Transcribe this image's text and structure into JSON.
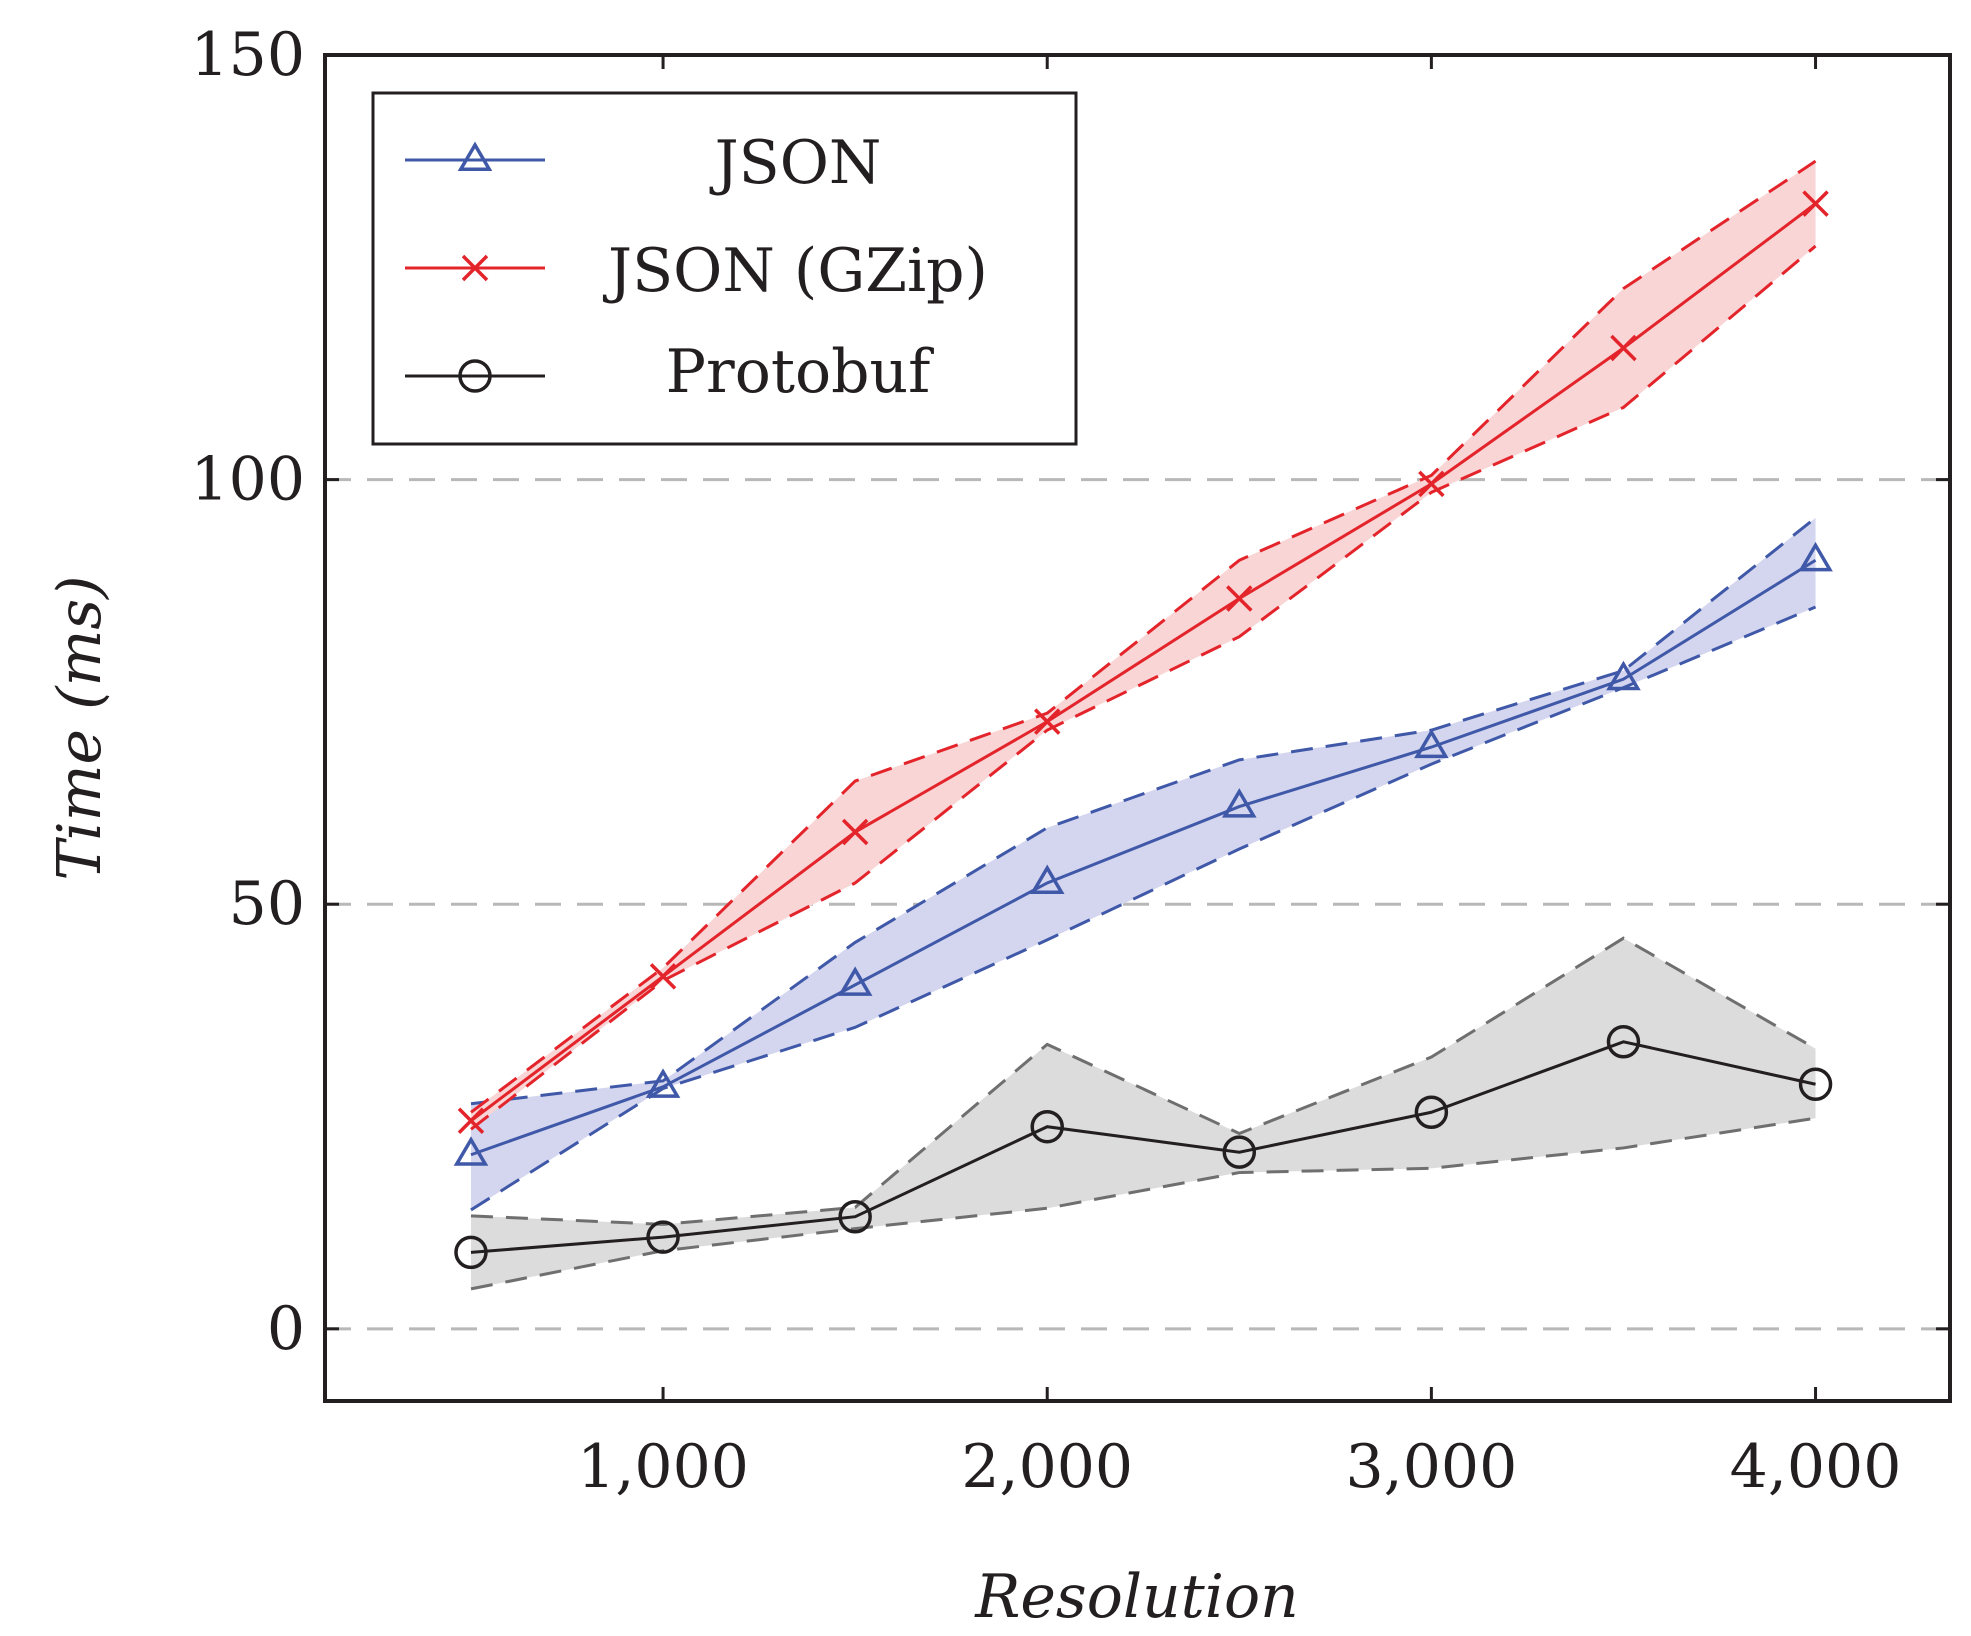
{
  "chart_data": {
    "type": "line",
    "xlabel": "Resolution",
    "ylabel": "Time (ms)",
    "xlim": [
      120,
      4350
    ],
    "ylim": [
      -8.5,
      150
    ],
    "x_ticks": [
      1000,
      2000,
      3000,
      4000
    ],
    "x_tick_labels": [
      "1,000",
      "2,000",
      "3,000",
      "4,000"
    ],
    "y_ticks": [
      0,
      50,
      100,
      150
    ],
    "y_tick_labels": [
      "0",
      "50",
      "100",
      "150"
    ],
    "grid": "horizontal dashed",
    "legend_position": "top-left",
    "series": [
      {
        "name": "JSON",
        "color": "#3f58a8",
        "band_color": "#d4d6ef",
        "marker": "triangle",
        "x": [
          500,
          1000,
          1500,
          2000,
          2500,
          3000,
          3500,
          4000
        ],
        "values": [
          20.5,
          28.5,
          40.5,
          52.5,
          61.5,
          68.5,
          76.5,
          90.5
        ],
        "upper": [
          26.5,
          29.2,
          45.5,
          59,
          67,
          70.5,
          77.5,
          95.5
        ],
        "lower": [
          14,
          28.3,
          35.5,
          45.8,
          56.5,
          66.5,
          75.5,
          85
        ]
      },
      {
        "name": "JSON (GZip)",
        "color": "#e3242b",
        "band_color": "#f9d5d6",
        "marker": "cross",
        "x": [
          500,
          1000,
          1500,
          2000,
          2500,
          3000,
          3500,
          4000
        ],
        "values": [
          24.5,
          41.5,
          58.5,
          71.5,
          86,
          99.5,
          115.5,
          132.5
        ],
        "upper": [
          25.5,
          42.5,
          64.5,
          72.5,
          90.5,
          100.5,
          122.5,
          137.5
        ],
        "lower": [
          23.5,
          41,
          52.5,
          70.5,
          81.5,
          98.5,
          108.5,
          127.5
        ]
      },
      {
        "name": "Protobuf",
        "color": "#231f20",
        "band_color": "#dcdcdc",
        "band_line_color": "#6f6f6f",
        "marker": "circle",
        "x": [
          500,
          1000,
          1500,
          2000,
          2500,
          3000,
          3500,
          4000
        ],
        "values": [
          9,
          10.8,
          13.2,
          23.8,
          20.8,
          25.5,
          33.8,
          28.8
        ],
        "upper": [
          13.3,
          12.3,
          14.3,
          33.5,
          23,
          32,
          46,
          33
        ],
        "lower": [
          4.7,
          9.2,
          11.8,
          14.2,
          18.4,
          18.9,
          21.3,
          24.8
        ]
      }
    ]
  }
}
